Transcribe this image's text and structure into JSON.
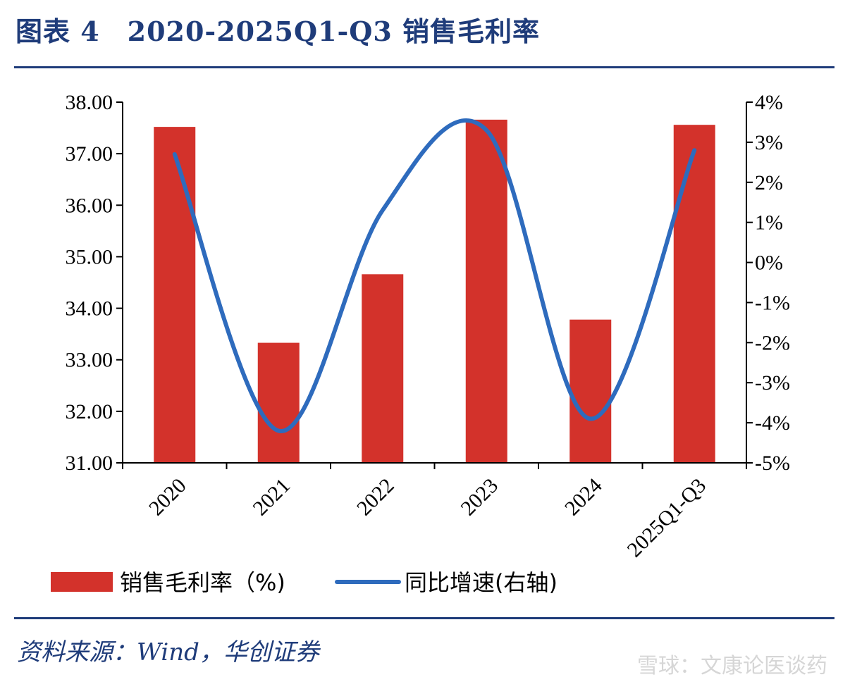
{
  "figure": {
    "title": "图表 4　2020-2025Q1-Q3 销售毛利率",
    "source": "资料来源：Wind，华创证券",
    "watermark": "雪球：文康论医谈药"
  },
  "colors": {
    "bar": "#d3322b",
    "line": "#2e6bbd",
    "rule": "#1f3c7a"
  },
  "chart_data": {
    "type": "bar",
    "categories": [
      "2020",
      "2021",
      "2022",
      "2023",
      "2024",
      "2025Q1-Q3"
    ],
    "series": [
      {
        "name": "销售毛利率（%)",
        "type": "bar",
        "axis": "left",
        "values": [
          37.52,
          33.33,
          34.66,
          37.66,
          33.78,
          37.56
        ]
      },
      {
        "name": "同比增速(右轴)",
        "type": "line",
        "axis": "right",
        "values": [
          2.7,
          -4.2,
          1.3,
          3.3,
          -3.9,
          2.8
        ]
      }
    ],
    "y_left": {
      "ylim": [
        31,
        38
      ],
      "ticks": [
        "31.00",
        "32.00",
        "33.00",
        "34.00",
        "35.00",
        "36.00",
        "37.00",
        "38.00"
      ]
    },
    "y_right": {
      "ylim": [
        -5,
        4
      ],
      "ticks": [
        "-5%",
        "-4%",
        "-3%",
        "-2%",
        "-1%",
        "0%",
        "1%",
        "2%",
        "3%",
        "4%"
      ]
    },
    "legend_position": "bottom",
    "grid": false
  }
}
